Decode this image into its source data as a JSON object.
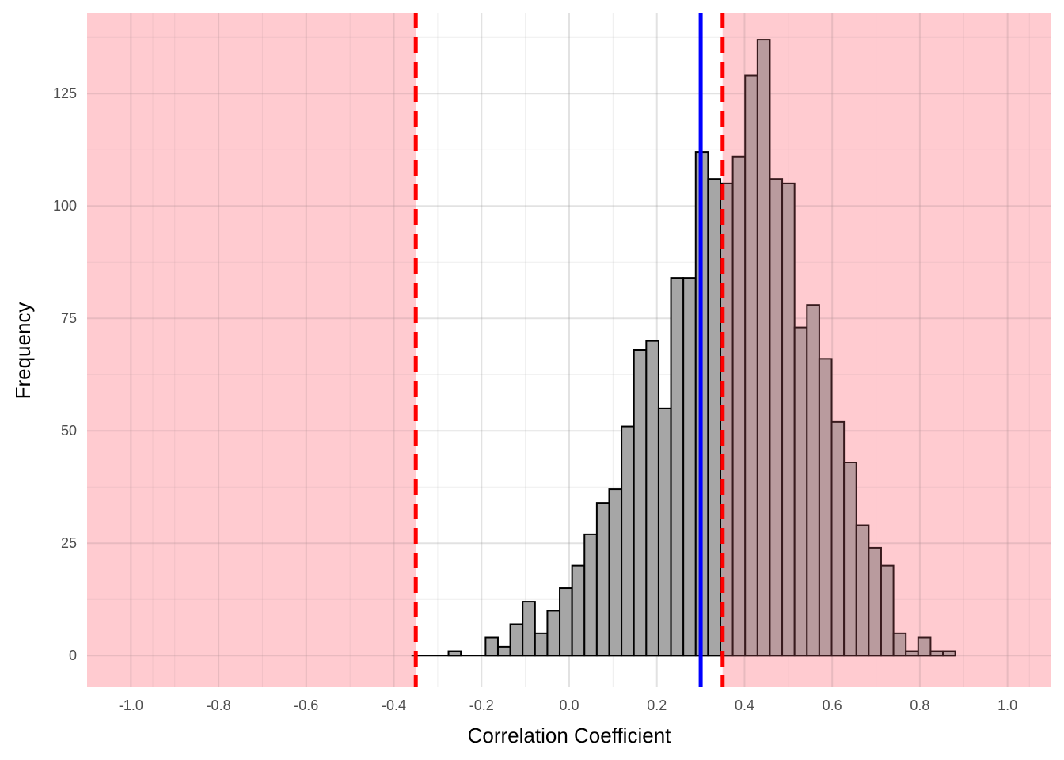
{
  "chart_data": {
    "type": "bar",
    "subtype": "histogram",
    "title": "",
    "xlabel": "Correlation Coefficient",
    "ylabel": "Frequency",
    "xlim": [
      -1.1,
      1.1
    ],
    "ylim": [
      -7,
      143
    ],
    "x_ticks": [
      -1.0,
      -0.8,
      -0.6,
      -0.4,
      -0.2,
      0.0,
      0.2,
      0.4,
      0.6,
      0.8,
      1.0
    ],
    "x_tick_labels": [
      "-1.0",
      "-0.8",
      "-0.6",
      "-0.4",
      "-0.2",
      "0.0",
      "0.2",
      "0.4",
      "0.6",
      "0.8",
      "1.0"
    ],
    "y_ticks": [
      0,
      25,
      50,
      75,
      100,
      125
    ],
    "y_tick_labels": [
      "0",
      "25",
      "50",
      "75",
      "100",
      "125"
    ],
    "bin_start": -0.36,
    "bin_width": 0.0282,
    "counts": [
      0,
      0,
      0,
      1,
      0,
      0,
      4,
      2,
      7,
      12,
      5,
      10,
      15,
      20,
      27,
      34,
      37,
      51,
      68,
      70,
      55,
      84,
      84,
      112,
      106,
      105,
      111,
      129,
      137,
      106,
      105,
      73,
      78,
      66,
      52,
      43,
      29,
      24,
      20,
      5,
      1,
      4,
      1,
      1
    ],
    "grid": true,
    "shaded_regions": [
      {
        "x_from": -1.1,
        "x_to": -0.35,
        "color": "#ff000022"
      },
      {
        "x_from": 0.35,
        "x_to": 1.1,
        "color": "#ff000022"
      }
    ],
    "reference_lines": [
      {
        "x": -0.35,
        "style": "dashed",
        "color": "#ff0000"
      },
      {
        "x": 0.35,
        "style": "dashed",
        "color": "#ff0000"
      },
      {
        "x": 0.3,
        "style": "solid",
        "color": "#0000ff"
      }
    ],
    "bar_color": "#a6a6a6",
    "shade_color": "#ffe3e6"
  }
}
